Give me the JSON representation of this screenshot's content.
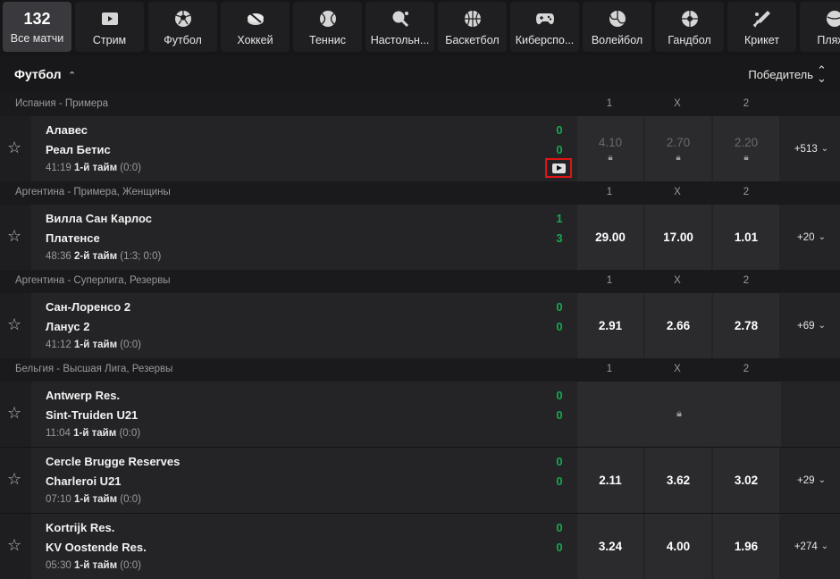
{
  "nav": {
    "tiles": [
      {
        "count": "132",
        "label": "Все матчи",
        "icon": "all-matches"
      },
      {
        "label": "Стрим",
        "icon": "stream-icon"
      },
      {
        "label": "Футбол",
        "icon": "soccer-ball-icon"
      },
      {
        "label": "Хоккей",
        "icon": "hockey-puck-icon"
      },
      {
        "label": "Теннис",
        "icon": "tennis-ball-icon"
      },
      {
        "label": "Настольн...",
        "icon": "table-tennis-icon"
      },
      {
        "label": "Баскетбол",
        "icon": "basketball-icon"
      },
      {
        "label": "Киберспо...",
        "icon": "gamepad-icon"
      },
      {
        "label": "Волейбол",
        "icon": "volleyball-icon"
      },
      {
        "label": "Гандбол",
        "icon": "handball-icon"
      },
      {
        "label": "Крикет",
        "icon": "cricket-bat-icon"
      },
      {
        "label": "Пляжн",
        "icon": "beach-icon"
      }
    ]
  },
  "section": {
    "title": "Футбол",
    "market": "Победитель"
  },
  "leagues": [
    {
      "name": "Испания - Примера",
      "h1": "1",
      "hx": "X",
      "h2": "2",
      "match": {
        "team1": "Алавес",
        "team2": "Реал Бетис",
        "score1": "0",
        "score2": "0",
        "clock": "41:19",
        "period": "1-й тайм",
        "detail": "(0:0)",
        "odd1": "4.10",
        "oddx": "2.70",
        "odd2": "2.20",
        "more": "+513",
        "locked": true,
        "video": true
      }
    },
    {
      "name": "Аргентина - Примера, Женщины",
      "h1": "1",
      "hx": "X",
      "h2": "2",
      "match": {
        "team1": "Вилла Сан Карлос",
        "team2": "Платенсе",
        "score1": "1",
        "score2": "3",
        "clock": "48:36",
        "period": "2-й тайм",
        "detail": "(1:3; 0:0)",
        "odd1": "29.00",
        "oddx": "17.00",
        "odd2": "1.01",
        "more": "+20"
      }
    },
    {
      "name": "Аргентина - Суперлига, Резервы",
      "h1": "1",
      "hx": "X",
      "h2": "2",
      "match": {
        "team1": "Сан-Лоренсо 2",
        "team2": "Ланус 2",
        "score1": "0",
        "score2": "0",
        "clock": "41:12",
        "period": "1-й тайм",
        "detail": "(0:0)",
        "odd1": "2.91",
        "oddx": "2.66",
        "odd2": "2.78",
        "more": "+69"
      }
    },
    {
      "name": "Бельгия - Высшая Лига, Резервы",
      "h1": "1",
      "hx": "X",
      "h2": "2",
      "matches": [
        {
          "team1": "Antwerp Res.",
          "team2": "Sint-Truiden U21",
          "score1": "0",
          "score2": "0",
          "clock": "11:04",
          "period": "1-й тайм",
          "detail": "(0:0)"
        },
        {
          "team1": "Cercle Brugge Reserves",
          "team2": "Charleroi U21",
          "score1": "0",
          "score2": "0",
          "clock": "07:10",
          "period": "1-й тайм",
          "detail": "(0:0)",
          "odd1": "2.11",
          "oddx": "3.62",
          "odd2": "3.02",
          "more": "+29"
        },
        {
          "team1": "Kortrijk Res.",
          "team2": "KV Oostende Res.",
          "score1": "0",
          "score2": "0",
          "clock": "05:30",
          "period": "1-й тайм",
          "detail": "(0:0)",
          "odd1": "3.24",
          "oddx": "4.00",
          "odd2": "1.96",
          "more": "+274"
        }
      ]
    }
  ]
}
